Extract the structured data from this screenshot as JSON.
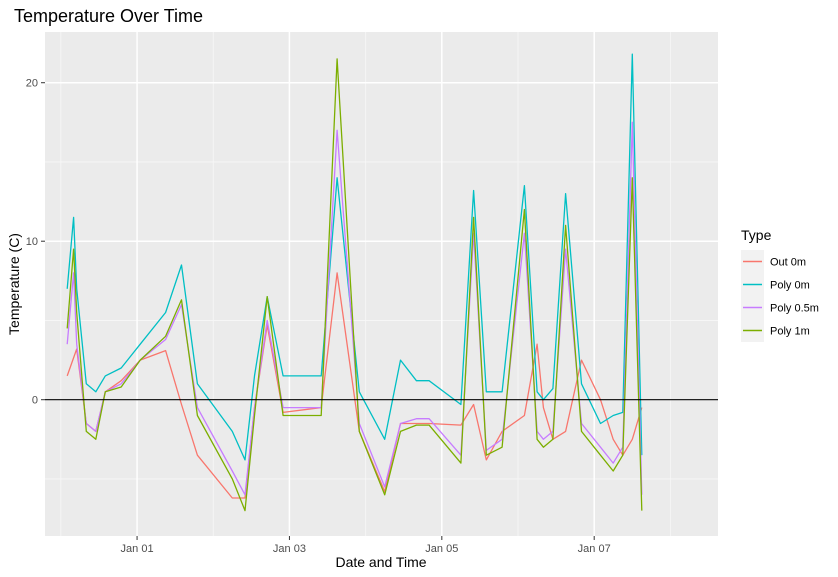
{
  "chart_data": {
    "type": "line",
    "title": "Temperature Over Time",
    "xlabel": "Date and Time",
    "ylabel": "Temperature (C)",
    "x_tick_labels": [
      "Jan 01",
      "Jan 03",
      "Jan 05",
      "Jan 07"
    ],
    "x_tick_values": [
      "01-01 00:00",
      "01-03 00:00",
      "01-05 00:00",
      "01-07 00:00"
    ],
    "x_range": [
      "12-30 19:00",
      "01-08 15:00"
    ],
    "y_ticks": [
      0,
      10,
      20
    ],
    "ylim": [
      -8.6,
      23.2
    ],
    "reference_line": {
      "y": 0,
      "color": "#000000"
    },
    "grid": true,
    "panel_background": "#EBEBEB",
    "legend": {
      "title": "Type",
      "placement": "right",
      "entries": [
        "Out 0m",
        "Poly 0m",
        "Poly 0.5m",
        "Poly 1m"
      ]
    },
    "series": [
      {
        "name": "Out 0m",
        "color": "#F8766D",
        "x": [
          "12-31 02:00",
          "12-31 05:00",
          "12-31 08:00",
          "12-31 11:00",
          "12-31 14:00",
          "12-31 19:00",
          "01-01 01:00",
          "01-01 09:00",
          "01-01 14:00",
          "01-01 19:00",
          "01-02 06:00",
          "01-02 10:00",
          "01-02 13:00",
          "01-02 17:00",
          "01-02 22:00",
          "01-03 06:00",
          "01-03 10:00",
          "01-03 15:00",
          "01-03 22:00",
          "01-04 06:00",
          "01-04 11:00",
          "01-04 16:00",
          "01-04 20:00",
          "01-05 06:00",
          "01-05 10:00",
          "01-05 14:00",
          "01-05 19:00",
          "01-06 02:00",
          "01-06 06:00",
          "01-06 08:00",
          "01-06 11:00",
          "01-06 15:00",
          "01-06 20:00",
          "01-07 02:00",
          "01-07 06:00",
          "01-07 09:00",
          "01-07 12:00",
          "01-07 15:00"
        ],
        "values": [
          1.5,
          3.2,
          -1.5,
          -2.0,
          0.5,
          1.2,
          2.5,
          3.1,
          -0.3,
          -3.5,
          -6.2,
          -6.2,
          -0.5,
          4.7,
          -0.8,
          -0.6,
          -0.5,
          8.0,
          -2.0,
          -5.8,
          -1.5,
          -1.5,
          -1.5,
          -1.6,
          -0.3,
          -3.8,
          -2.0,
          -1.0,
          3.5,
          -0.5,
          -2.5,
          -2.0,
          2.5,
          0.0,
          -2.5,
          -3.5,
          -2.5,
          -0.5
        ]
      },
      {
        "name": "Poly 0m",
        "color": "#00BFC4",
        "x": [
          "12-31 02:00",
          "12-31 04:00",
          "12-31 05:00",
          "12-31 08:00",
          "12-31 11:00",
          "12-31 14:00",
          "12-31 19:00",
          "01-01 01:00",
          "01-01 09:00",
          "01-01 14:00",
          "01-01 19:00",
          "01-02 06:00",
          "01-02 10:00",
          "01-02 13:00",
          "01-02 17:00",
          "01-02 22:00",
          "01-03 06:00",
          "01-03 10:00",
          "01-03 15:00",
          "01-03 22:00",
          "01-04 06:00",
          "01-04 11:00",
          "01-04 16:00",
          "01-04 20:00",
          "01-05 06:00",
          "01-05 10:00",
          "01-05 14:00",
          "01-05 19:00",
          "01-06 02:00",
          "01-06 06:00",
          "01-06 08:00",
          "01-06 11:00",
          "01-06 15:00",
          "01-06 20:00",
          "01-07 02:00",
          "01-07 06:00",
          "01-07 09:00",
          "01-07 12:00",
          "01-07 15:00"
        ],
        "values": [
          7.0,
          11.5,
          7.0,
          1.0,
          0.5,
          1.5,
          2.0,
          3.5,
          5.5,
          8.5,
          1.0,
          -2.0,
          -3.8,
          1.5,
          6.5,
          1.5,
          1.5,
          1.5,
          14.0,
          0.5,
          -2.5,
          2.5,
          1.2,
          1.2,
          -0.3,
          13.2,
          0.5,
          0.5,
          13.5,
          0.5,
          0.0,
          0.7,
          13.0,
          1.0,
          -1.5,
          -1.0,
          -0.8,
          21.8,
          -3.5
        ]
      },
      {
        "name": "Poly 0.5m",
        "color": "#C77CFF",
        "x": [
          "12-31 02:00",
          "12-31 04:00",
          "12-31 05:00",
          "12-31 08:00",
          "12-31 11:00",
          "12-31 14:00",
          "12-31 19:00",
          "01-01 01:00",
          "01-01 09:00",
          "01-01 14:00",
          "01-01 19:00",
          "01-02 06:00",
          "01-02 10:00",
          "01-02 13:00",
          "01-02 17:00",
          "01-02 22:00",
          "01-03 06:00",
          "01-03 10:00",
          "01-03 15:00",
          "01-03 22:00",
          "01-04 06:00",
          "01-04 11:00",
          "01-04 16:00",
          "01-04 20:00",
          "01-05 06:00",
          "01-05 10:00",
          "01-05 14:00",
          "01-05 19:00",
          "01-06 02:00",
          "01-06 06:00",
          "01-06 08:00",
          "01-06 11:00",
          "01-06 15:00",
          "01-06 20:00",
          "01-07 02:00",
          "01-07 06:00",
          "01-07 09:00",
          "01-07 12:00",
          "01-07 15:00"
        ],
        "values": [
          3.5,
          8.0,
          3.5,
          -1.5,
          -2.0,
          0.5,
          1.0,
          2.5,
          3.8,
          6.0,
          -0.5,
          -4.5,
          -6.0,
          -0.5,
          5.0,
          -0.5,
          -0.5,
          -0.5,
          17.0,
          -1.5,
          -5.5,
          -1.5,
          -1.2,
          -1.2,
          -3.5,
          10.5,
          -3.2,
          -2.5,
          10.5,
          -2.0,
          -2.5,
          -2.0,
          9.5,
          -1.5,
          -3.0,
          -4.0,
          -3.0,
          17.5,
          -6.0
        ]
      },
      {
        "name": "Poly 1m",
        "color": "#7CAE00",
        "x": [
          "12-31 02:00",
          "12-31 04:00",
          "12-31 05:00",
          "12-31 08:00",
          "12-31 11:00",
          "12-31 14:00",
          "12-31 19:00",
          "01-01 01:00",
          "01-01 09:00",
          "01-01 14:00",
          "01-01 19:00",
          "01-02 06:00",
          "01-02 10:00",
          "01-02 13:00",
          "01-02 17:00",
          "01-02 22:00",
          "01-03 06:00",
          "01-03 10:00",
          "01-03 15:00",
          "01-03 22:00",
          "01-04 06:00",
          "01-04 11:00",
          "01-04 16:00",
          "01-04 20:00",
          "01-05 06:00",
          "01-05 10:00",
          "01-05 14:00",
          "01-05 19:00",
          "01-06 02:00",
          "01-06 06:00",
          "01-06 08:00",
          "01-06 11:00",
          "01-06 15:00",
          "01-06 20:00",
          "01-07 02:00",
          "01-07 06:00",
          "01-07 09:00",
          "01-07 12:00",
          "01-07 15:00"
        ],
        "values": [
          4.5,
          9.5,
          5.5,
          -2.0,
          -2.5,
          0.5,
          0.8,
          2.5,
          4.0,
          6.3,
          -1.0,
          -5.0,
          -7.0,
          -1.0,
          6.5,
          -1.0,
          -1.0,
          -1.0,
          21.5,
          -2.0,
          -6.0,
          -2.0,
          -1.6,
          -1.6,
          -4.0,
          11.5,
          -3.5,
          -3.0,
          12.0,
          -2.5,
          -3.0,
          -2.5,
          11.0,
          -2.0,
          -3.5,
          -4.5,
          -3.5,
          14.0,
          -7.0
        ]
      }
    ]
  }
}
